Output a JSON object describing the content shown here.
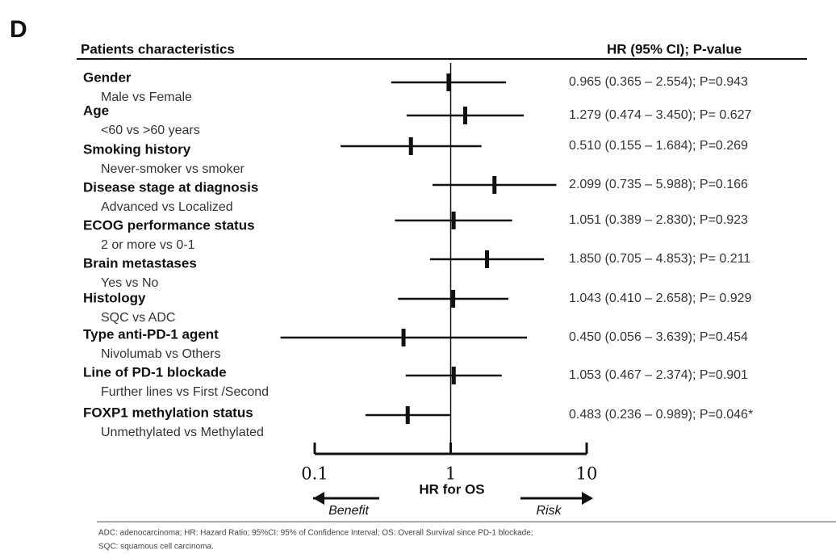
{
  "panel_label": "D",
  "chart_data": {
    "type": "forest",
    "header_left": "Patients characteristics",
    "header_right": "HR (95% CI); P-value",
    "categories": [
      "Gender",
      "Age",
      "Smoking history",
      "Disease stage at diagnosis",
      "ECOG performance status",
      "Brain metastases",
      "Histology",
      "Type anti-PD-1 agent",
      "Line of PD-1 blockade",
      "FOXP1 methylation status"
    ],
    "subcategories": [
      "Male vs Female",
      "<60 vs >60 years",
      "Never-smoker vs smoker",
      "Advanced vs Localized",
      "2 or more vs 0-1",
      "Yes vs No",
      "SQC vs ADC",
      "Nivolumab vs Others",
      "Further lines vs First /Second",
      "Unmethylated vs Methylated"
    ],
    "values": [
      0.965,
      1.279,
      0.51,
      2.099,
      1.051,
      1.85,
      1.043,
      0.45,
      1.053,
      0.483
    ],
    "lower": [
      0.365,
      0.474,
      0.155,
      0.735,
      0.389,
      0.705,
      0.41,
      0.056,
      0.467,
      0.236
    ],
    "upper": [
      2.554,
      3.45,
      1.684,
      5.988,
      2.83,
      4.853,
      2.658,
      3.639,
      2.374,
      0.989
    ],
    "value_labels": [
      "0.965 (0.365 – 2.554); P=0.943",
      "1.279 (0.474 – 3.450); P= 0.627",
      "0.510 (0.155 – 1.684); P=0.269",
      "2.099 (0.735 – 5.988); P=0.166",
      "1.051 (0.389 – 2.830); P=0.923",
      "1.850 (0.705 – 4.853); P= 0.211",
      "1.043 (0.410 – 2.658); P= 0.929",
      "0.450 (0.056 – 3.639); P=0.454",
      "1.053 (0.467 – 2.374); P=0.901",
      "0.483 (0.236 – 0.989); P=0.046*"
    ],
    "xlabel": "HR for OS",
    "xlim": [
      0.1,
      10
    ],
    "xticks": [
      0.1,
      1,
      10
    ],
    "log_x": true,
    "reference_line": 1,
    "left_arrow": "Benefit",
    "right_arrow": "Risk",
    "color": "#111111"
  },
  "footnote": [
    "ADC: adenocarcinoma; HR: Hazard Ratio; 95%CI: 95% of Confidence Interval; OS: Overall Survival since PD-1 blockade;",
    "SQC: squamous cell carcinoma."
  ]
}
